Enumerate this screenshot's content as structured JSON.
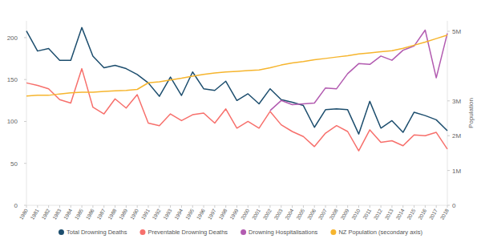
{
  "chart_data": {
    "type": "line",
    "categories": [
      "1980",
      "1981",
      "1982",
      "1983",
      "1984",
      "1985",
      "1986",
      "1987",
      "1988",
      "1989",
      "1990",
      "1991",
      "1992",
      "1993",
      "1994",
      "1995",
      "1996",
      "1997",
      "1998",
      "1999",
      "2000",
      "2001",
      "2002",
      "2003",
      "2004",
      "2005",
      "2006",
      "2007",
      "2008",
      "2009",
      "2010",
      "2011",
      "2012",
      "2013",
      "2014",
      "2015",
      "2016",
      "2017",
      "2018"
    ],
    "series": [
      {
        "name": "Total Drowning Deaths",
        "color": "#1d4e6e",
        "values": [
          208,
          184,
          187,
          173,
          173,
          212,
          178,
          164,
          167,
          163,
          156,
          146,
          130,
          153,
          131,
          159,
          139,
          137,
          148,
          125,
          133,
          121,
          139,
          126,
          123,
          119,
          93,
          114,
          115,
          114,
          85,
          124,
          92,
          101,
          87,
          111,
          107,
          102,
          89
        ]
      },
      {
        "name": "Preventable Drowning Deaths",
        "color": "#f7706c",
        "values": [
          146,
          143,
          139,
          126,
          122,
          163,
          117,
          109,
          127,
          116,
          132,
          98,
          95,
          109,
          101,
          108,
          110,
          98,
          115,
          92,
          100,
          92,
          112,
          96,
          88,
          82,
          70,
          86,
          95,
          88,
          65,
          90,
          75,
          77,
          71,
          84,
          83,
          87,
          67
        ]
      },
      {
        "name": "Drowning Hospitalisations",
        "color": "#b25bb0",
        "values": [
          null,
          null,
          null,
          null,
          null,
          null,
          null,
          null,
          null,
          null,
          null,
          null,
          null,
          null,
          null,
          null,
          null,
          null,
          null,
          null,
          null,
          null,
          113,
          125,
          120,
          121,
          122,
          140,
          139,
          157,
          169,
          168,
          178,
          173,
          185,
          190,
          209,
          152,
          205
        ]
      },
      {
        "name": "NZ Population (secondary axis)",
        "color": "#f6b52e",
        "axis": "y2",
        "values": [
          3140000,
          3160000,
          3160000,
          3200000,
          3230000,
          3250000,
          3250000,
          3270000,
          3290000,
          3300000,
          3330000,
          3520000,
          3550000,
          3600000,
          3650000,
          3710000,
          3760000,
          3800000,
          3830000,
          3850000,
          3870000,
          3890000,
          3950000,
          4030000,
          4090000,
          4130000,
          4180000,
          4220000,
          4260000,
          4300000,
          4350000,
          4380000,
          4410000,
          4440000,
          4510000,
          4600000,
          4690000,
          4790000,
          4890000
        ]
      }
    ],
    "ylim": [
      0,
      220
    ],
    "yticks": [
      0,
      50,
      100,
      150,
      200
    ],
    "y2lim": [
      0,
      5300000
    ],
    "y2ticks": [
      0,
      {
        "value": 1000000,
        "label": "1M"
      },
      {
        "value": 2000000,
        "label": "2M"
      },
      {
        "value": 3000000,
        "label": "3M"
      },
      {
        "value": 5000000,
        "label": "5M"
      }
    ],
    "y2_label": "Population",
    "grid": false,
    "legend": "bottom"
  }
}
